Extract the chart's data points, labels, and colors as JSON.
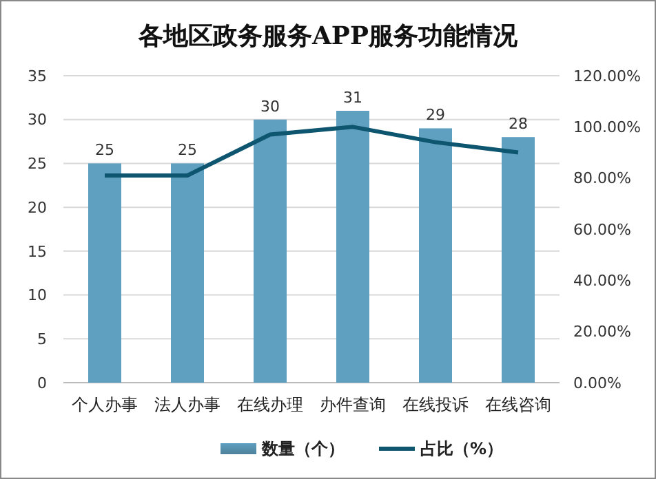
{
  "chart_data": {
    "type": "bar",
    "title": "各地区政务服务APP服务功能情况",
    "categories": [
      "个人办事",
      "法人办事",
      "在线办理",
      "办件查询",
      "在线投诉",
      "在线咨询"
    ],
    "series": [
      {
        "name": "数量（个）",
        "color": "#5f9fbf",
        "values": [
          25,
          25,
          30,
          31,
          29,
          28
        ],
        "value_labels": [
          "25",
          "25",
          "30",
          "31",
          "29",
          "28"
        ]
      },
      {
        "name": "占比（%）",
        "type": "line",
        "axis": "y2",
        "color": "#0e5670",
        "values": [
          81,
          81,
          97,
          100,
          94,
          90
        ]
      }
    ],
    "ylim": [
      0,
      35
    ],
    "yticks": [
      0,
      5,
      10,
      15,
      20,
      25,
      30,
      35
    ],
    "y2lim": [
      0,
      120
    ],
    "y2ticks": [
      {
        "value": 0,
        "label": "0.00%"
      },
      {
        "value": 20,
        "label": "20.00%"
      },
      {
        "value": 40,
        "label": "40.00%"
      },
      {
        "value": 60,
        "label": "60.00%"
      },
      {
        "value": 80,
        "label": "80.00%"
      },
      {
        "value": 100,
        "label": "100.00%"
      },
      {
        "value": 120,
        "label": "120.00%"
      }
    ],
    "grid": "y",
    "legend": "bottom",
    "line_style": "solid",
    "marker": "none"
  }
}
